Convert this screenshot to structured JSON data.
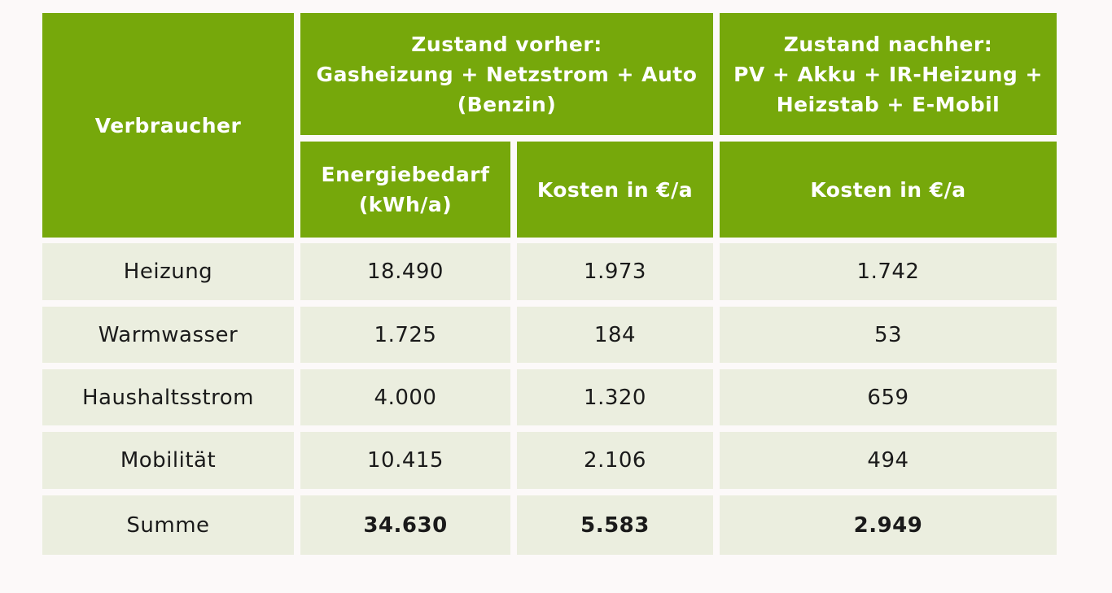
{
  "table": {
    "header": {
      "consumer": "Verbraucher",
      "before": "Zustand vorher:\nGasheizung + Netzstrom + Auto\n(Benzin)",
      "after": "Zustand nachher:\nPV + Akku + IR-Heizung +\nHeizstab + E-Mobil",
      "columns": [
        "Energiebedarf\n(kWh/a)",
        "Kosten in €/a",
        "Kosten in €/a"
      ]
    },
    "rows": [
      [
        "Heizung",
        "18.490",
        "1.973",
        "1.742"
      ],
      [
        "Warmwasser",
        "1.725",
        "184",
        "53"
      ],
      [
        "Haushaltsstrom",
        "4.000",
        "1.320",
        "659"
      ],
      [
        "Mobilität",
        "10.415",
        "2.106",
        "494"
      ],
      [
        "Summe",
        "34.630",
        "5.583",
        "2.949"
      ]
    ]
  }
}
